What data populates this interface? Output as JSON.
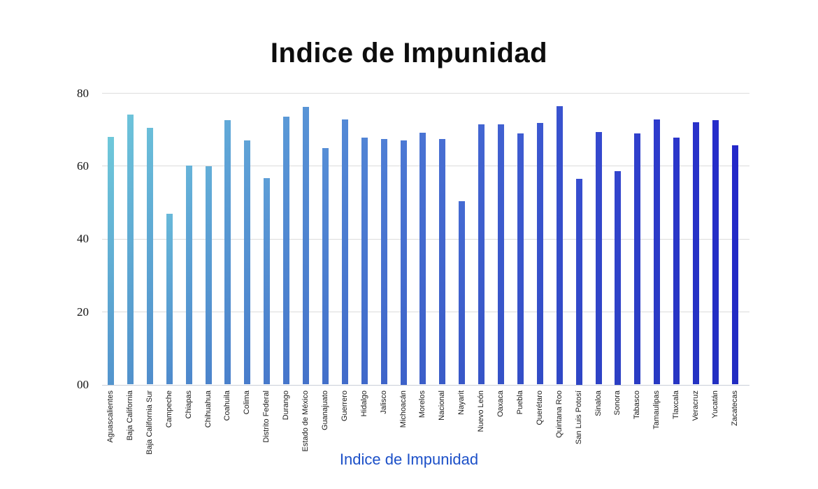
{
  "title": "Indice de Impunidad",
  "footer_label": "Indice de Impunidad",
  "chart_data": {
    "type": "bar",
    "title": "Indice de Impunidad",
    "footer_label": "Indice de Impunidad",
    "categories": [
      "Aguascalientes",
      "Baja California",
      "Baja California Sur",
      "Campeche",
      "Chiapas",
      "Chihuahua",
      "Coahuila",
      "Colima",
      "Distrito Federal",
      "Durango",
      "Estado de México",
      "Guanajuato",
      "Guerrero",
      "Hidalgo",
      "Jalisco",
      "Michoacán",
      "Morelos",
      "Nacional",
      "Nayarit",
      "Nuevo León",
      "Oaxaca",
      "Puebla",
      "Querétaro",
      "Quintana Roo",
      "San Luis Potosí",
      "Sinaloa",
      "Sonora",
      "Tabasco",
      "Tamaulipas",
      "Tlaxcala",
      "Veracruz",
      "Yucatán",
      "Zacatecas"
    ],
    "values": [
      68.0,
      74.1,
      70.4,
      46.9,
      60.1,
      59.8,
      72.6,
      66.9,
      56.7,
      73.4,
      76.1,
      64.8,
      72.8,
      67.7,
      67.4,
      67.0,
      69.1,
      67.3,
      50.3,
      71.3,
      71.3,
      68.9,
      71.8,
      76.4,
      56.5,
      69.3,
      58.5,
      68.9,
      72.8,
      67.8,
      71.9,
      72.6,
      65.7
    ],
    "ylim": [
      0,
      80
    ],
    "y_ticks": [
      {
        "value": 0,
        "label": "00"
      },
      {
        "value": 20,
        "label": "20"
      },
      {
        "value": 40,
        "label": "40"
      },
      {
        "value": 60,
        "label": "60"
      },
      {
        "value": 80,
        "label": "80"
      }
    ],
    "grid": "horizontal",
    "legend_position": "bottom",
    "colors": {
      "bar_gradient_start": "#6FC8DA",
      "bar_gradient_mid": "#4A74D4",
      "bar_gradient_end": "#2428C9",
      "bar_bottom_shade": "#1E34B4",
      "gridline": "#DCDCDC",
      "baseline": "#C9CED8",
      "title_text": "#0D0D0D",
      "footer_text": "#1C50C8",
      "axis_text": "#1A1A1A"
    }
  }
}
